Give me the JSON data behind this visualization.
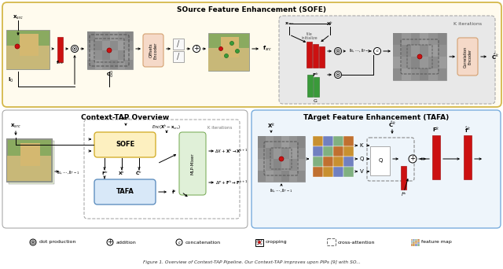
{
  "background_color": "#ffffff",
  "sofe_box_color": "#fffbee",
  "sofe_border_color": "#d4b84a",
  "sofe_title": "SOurce Feature Enhancement (SOFE)",
  "overview_title": "Context-TAP Overview",
  "tafa_box_color": "#eef5fb",
  "tafa_border_color": "#7aaddd",
  "tafa_title": "TArget Feature Enhancement (TAFA)",
  "red_color": "#cc1111",
  "green_color": "#3a9a3a",
  "gray_img": "#b0b0b0",
  "orange_box": "#f5d9c8",
  "orange_border": "#d4a070",
  "yellow_box": "#fdf0c0",
  "yellow_border": "#d4b030",
  "blue_box": "#d8e8f8",
  "blue_border": "#6090c0",
  "green_box": "#e0f0d8",
  "green_border": "#80b060",
  "iter_box": "#e8e8e8",
  "iter_border": "#aaaaaa"
}
